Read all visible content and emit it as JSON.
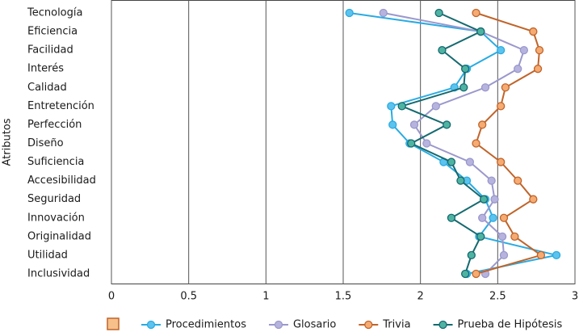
{
  "chart_data": {
    "type": "line",
    "orientation": "horizontal",
    "ylabel": "Atributos",
    "categories": [
      "Tecnología",
      "Eficiencia",
      "Facilidad",
      "Interés",
      "Calidad",
      "Entretención",
      "Perfección",
      "Diseño",
      "Suficiencia",
      "Accesibilidad",
      "Seguridad",
      "Innovación",
      "Originalidad",
      "Utilidad",
      "Inclusividad"
    ],
    "xlim": [
      0,
      3
    ],
    "xticks": [
      0,
      0.5,
      1,
      1.5,
      2,
      2.5,
      3
    ],
    "grid": true,
    "legend": "bottom",
    "series": [
      {
        "name": "Procedimientos",
        "color": "#29abe2",
        "marker_color": "#5cc3ee",
        "values": [
          1.54,
          2.39,
          2.52,
          2.3,
          2.22,
          1.81,
          1.82,
          1.93,
          2.15,
          2.3,
          2.42,
          2.47,
          2.38,
          2.88,
          2.3
        ]
      },
      {
        "name": "Glosario",
        "color": "#9a98cc",
        "marker_color": "#b6b4de",
        "values": [
          1.76,
          2.39,
          2.67,
          2.63,
          2.42,
          2.1,
          1.96,
          2.04,
          2.32,
          2.46,
          2.48,
          2.4,
          2.53,
          2.54,
          2.42
        ]
      },
      {
        "name": "Trivia",
        "color": "#c0642a",
        "marker_color": "#f5ab72",
        "values": [
          2.36,
          2.73,
          2.77,
          2.76,
          2.55,
          2.52,
          2.4,
          2.36,
          2.52,
          2.63,
          2.73,
          2.54,
          2.61,
          2.78,
          2.36
        ]
      },
      {
        "name": "Prueba de Hipótesis",
        "color": "#156a70",
        "marker_color": "#4fb3a2",
        "values": [
          2.12,
          2.39,
          2.14,
          2.29,
          2.28,
          1.88,
          2.17,
          1.94,
          2.2,
          2.26,
          2.41,
          2.2,
          2.39,
          2.33,
          2.29
        ]
      }
    ]
  }
}
